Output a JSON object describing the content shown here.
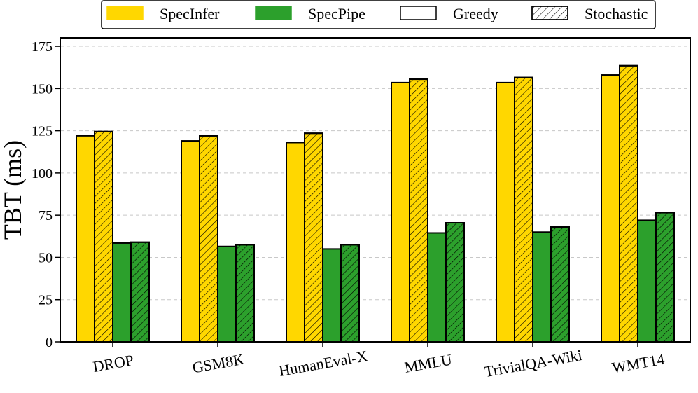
{
  "chart_data": {
    "type": "bar",
    "title": "",
    "xlabel": "",
    "ylabel": "TBT (ms)",
    "ylim": [
      0,
      180
    ],
    "yticks": [
      0,
      25,
      50,
      75,
      100,
      125,
      150,
      175
    ],
    "grid": "y-dashed",
    "categories": [
      "DROP",
      "GSM8K",
      "HumanEval-X",
      "MMLU",
      "TrivialQA-Wiki",
      "WMT14"
    ],
    "series": [
      {
        "name": "SpecInfer Greedy",
        "system": "SpecInfer",
        "mode": "Greedy",
        "color": "#FFD700",
        "values": [
          122,
          119,
          118,
          153.5,
          153.5,
          158
        ]
      },
      {
        "name": "SpecInfer Stochastic",
        "system": "SpecInfer",
        "mode": "Stochastic",
        "color": "#FFD700",
        "values": [
          124.5,
          122,
          123.5,
          155.5,
          156.5,
          163.5
        ]
      },
      {
        "name": "SpecPipe Greedy",
        "system": "SpecPipe",
        "mode": "Greedy",
        "color": "#2CA02C",
        "values": [
          58.5,
          56.5,
          55,
          64.5,
          65,
          72
        ]
      },
      {
        "name": "SpecPipe Stochastic",
        "system": "SpecPipe",
        "mode": "Stochastic",
        "color": "#2CA02C",
        "values": [
          59,
          57.5,
          57.5,
          70.5,
          68,
          76.5
        ]
      }
    ],
    "legend": {
      "placement": "top-center",
      "entries": [
        {
          "label": "SpecInfer",
          "color": "#FFD700",
          "hatch": false
        },
        {
          "label": "SpecPipe",
          "color": "#2CA02C",
          "hatch": false
        },
        {
          "label": "Greedy",
          "color": "#FFFFFF",
          "hatch": false
        },
        {
          "label": "Stochastic",
          "color": "#FFFFFF",
          "hatch": true
        }
      ]
    }
  }
}
